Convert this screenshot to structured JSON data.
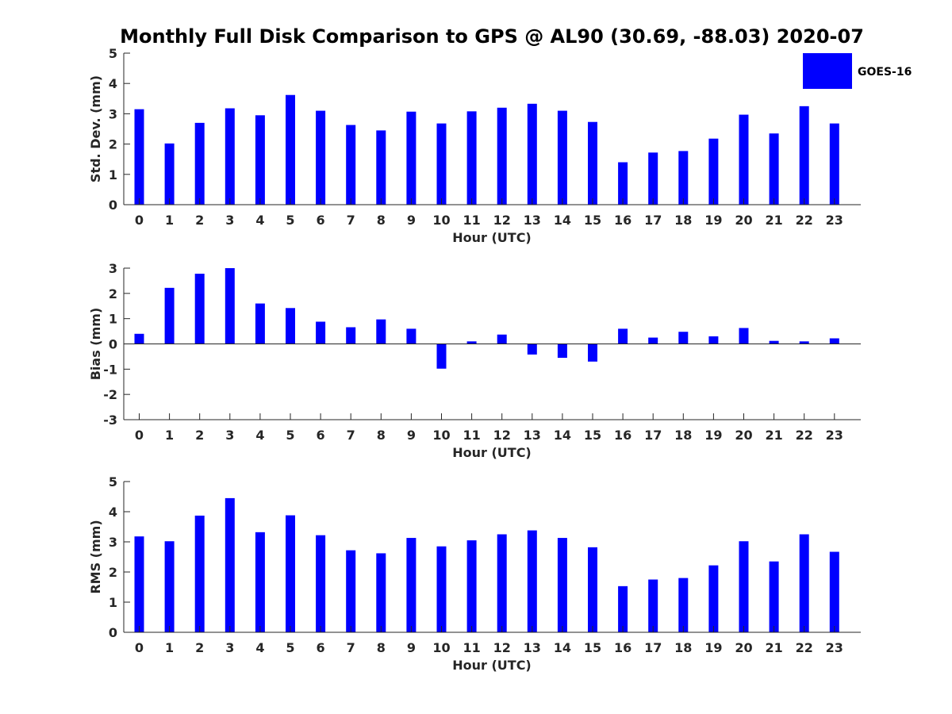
{
  "title": "Monthly Full Disk Comparison to GPS @ AL90 (30.69, -88.03) 2020-07",
  "legend": {
    "label": "GOES-16",
    "color": "#0000ff"
  },
  "chart_data": [
    {
      "type": "bar",
      "xlabel": "Hour (UTC)",
      "ylabel": "Std. Dev. (mm)",
      "ylim": [
        0,
        5
      ],
      "yticks": [
        0,
        1,
        2,
        3,
        4,
        5
      ],
      "categories": [
        "0",
        "1",
        "2",
        "3",
        "4",
        "5",
        "6",
        "7",
        "8",
        "9",
        "10",
        "11",
        "12",
        "13",
        "14",
        "15",
        "16",
        "17",
        "18",
        "19",
        "20",
        "21",
        "22",
        "23"
      ],
      "series": [
        {
          "name": "GOES-16",
          "values": [
            3.15,
            2.02,
            2.7,
            3.18,
            2.95,
            3.62,
            3.1,
            2.63,
            2.45,
            3.07,
            2.68,
            3.08,
            3.2,
            3.33,
            3.1,
            2.73,
            1.4,
            1.72,
            1.77,
            2.18,
            2.97,
            2.35,
            3.25,
            2.68
          ]
        }
      ]
    },
    {
      "type": "bar",
      "xlabel": "Hour (UTC)",
      "ylabel": "Bias (mm)",
      "ylim": [
        -3,
        3
      ],
      "yticks": [
        -3,
        -2,
        -1,
        0,
        1,
        2,
        3
      ],
      "categories": [
        "0",
        "1",
        "2",
        "3",
        "4",
        "5",
        "6",
        "7",
        "8",
        "9",
        "10",
        "11",
        "12",
        "13",
        "14",
        "15",
        "16",
        "17",
        "18",
        "19",
        "20",
        "21",
        "22",
        "23"
      ],
      "series": [
        {
          "name": "GOES-16",
          "values": [
            0.4,
            2.22,
            2.78,
            3.0,
            1.6,
            1.42,
            0.88,
            0.66,
            0.97,
            0.6,
            -0.98,
            0.1,
            0.37,
            -0.42,
            -0.55,
            -0.7,
            0.6,
            0.25,
            0.48,
            0.3,
            0.63,
            0.12,
            0.1,
            0.22
          ]
        }
      ]
    },
    {
      "type": "bar",
      "xlabel": "Hour (UTC)",
      "ylabel": "RMS (mm)",
      "ylim": [
        0,
        5
      ],
      "yticks": [
        0,
        1,
        2,
        3,
        4,
        5
      ],
      "categories": [
        "0",
        "1",
        "2",
        "3",
        "4",
        "5",
        "6",
        "7",
        "8",
        "9",
        "10",
        "11",
        "12",
        "13",
        "14",
        "15",
        "16",
        "17",
        "18",
        "19",
        "20",
        "21",
        "22",
        "23"
      ],
      "series": [
        {
          "name": "GOES-16",
          "values": [
            3.18,
            3.02,
            3.87,
            4.45,
            3.32,
            3.88,
            3.22,
            2.72,
            2.62,
            3.13,
            2.85,
            3.05,
            3.25,
            3.38,
            3.13,
            2.82,
            1.53,
            1.75,
            1.8,
            2.22,
            3.02,
            2.35,
            3.25,
            2.67
          ]
        }
      ]
    }
  ]
}
